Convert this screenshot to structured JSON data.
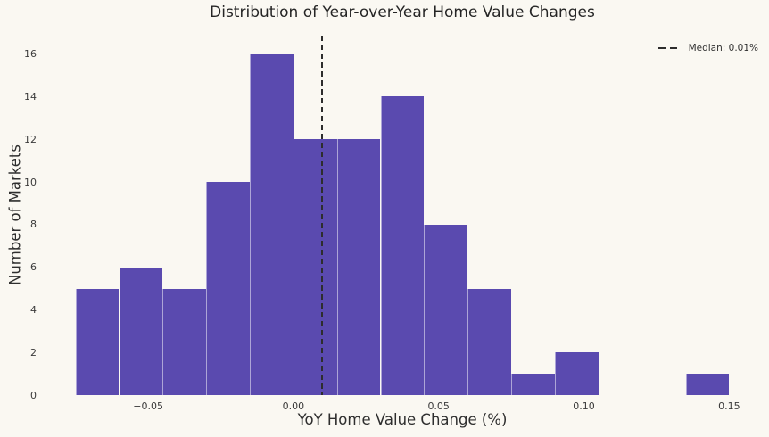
{
  "colors": {
    "background": "#faf8f2",
    "bar": "#5a4aaf",
    "bar_edge": "rgba(255,255,255,0.5)",
    "median_line": "#2d2d2d",
    "title_text": "#252525",
    "tick_text": "#3b3b3b"
  },
  "chart_data": {
    "type": "bar",
    "subtype": "histogram",
    "title": "Distribution of Year-over-Year Home Value Changes",
    "xlabel": "YoY Home Value Change (%)",
    "ylabel": "Number of Markets",
    "bin_edges": [
      -0.075,
      -0.06,
      -0.045,
      -0.03,
      -0.015,
      0.0,
      0.015,
      0.03,
      0.045,
      0.06,
      0.075,
      0.09,
      0.105,
      0.12,
      0.135,
      0.15
    ],
    "counts": [
      5,
      6,
      5,
      10,
      16,
      12,
      12,
      14,
      8,
      5,
      1,
      2,
      0,
      0,
      1
    ],
    "xticks": {
      "values": [
        -0.05,
        0.0,
        0.05,
        0.1,
        0.15
      ],
      "labels": [
        "−0.05",
        "0.00",
        "0.05",
        "0.10",
        "0.15"
      ]
    },
    "yticks": {
      "values": [
        0,
        2,
        4,
        6,
        8,
        10,
        12,
        14,
        16
      ],
      "labels": [
        "0",
        "2",
        "4",
        "6",
        "8",
        "10",
        "12",
        "14",
        "16"
      ]
    },
    "xlim": [
      -0.08625,
      0.16125
    ],
    "ylim": [
      0,
      16.86
    ],
    "median_line": {
      "x": 0.01,
      "style": "dashed",
      "label": "Median: 0.01%"
    },
    "legend_position": "upper right",
    "grid": false
  }
}
